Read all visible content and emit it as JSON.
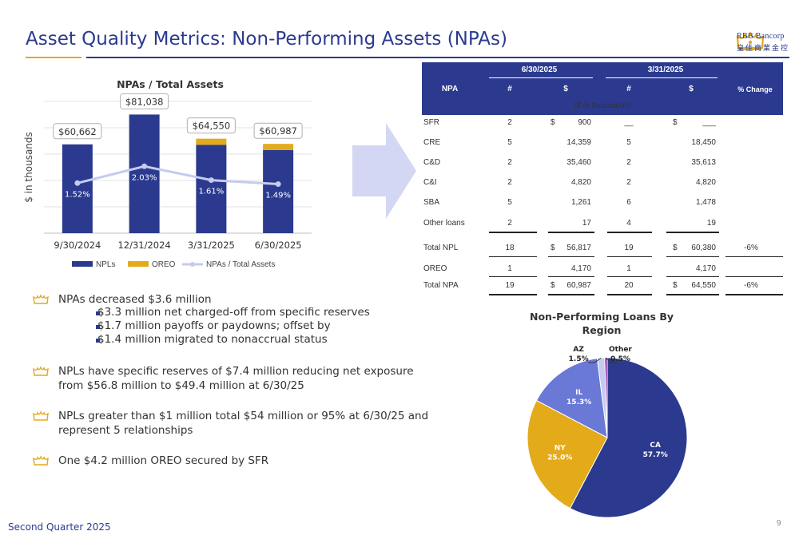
{
  "header": {
    "title": "Asset Quality Metrics:  Non-Performing Assets (NPAs)",
    "logo_en": "RBB Bancorp",
    "logo_zh": "皇佳商業金控"
  },
  "chart_data": [
    {
      "type": "bar",
      "title": "NPAs / Total Assets",
      "ylabel": "$ in thousands",
      "xlabel": "",
      "categories": [
        "9/30/2024",
        "12/31/2024",
        "3/31/2025",
        "6/30/2025"
      ],
      "series": [
        {
          "name": "NPLs",
          "values": [
            60662,
            81038,
            60380,
            56817
          ],
          "color": "#2b3a8f"
        },
        {
          "name": "OREO",
          "values": [
            0,
            0,
            4170,
            4170
          ],
          "color": "#e3aa1a"
        },
        {
          "name": "NPAs / Total Assets",
          "values": [
            1.52,
            2.03,
            1.61,
            1.49
          ],
          "color": "#c5cbee",
          "type": "line",
          "labels": [
            "1.52%",
            "2.03%",
            "1.61%",
            "1.49%"
          ]
        }
      ],
      "total_labels": [
        "$60,662",
        "$81,038",
        "$64,550",
        "$60,987"
      ],
      "ylim": [
        0,
        90000
      ],
      "ratio_ylim": [
        0,
        4
      ],
      "grid": true,
      "legend": "bottom"
    },
    {
      "type": "pie",
      "title": "Non-Performing Loans By Region",
      "slices": [
        {
          "name": "CA",
          "value": 57.7,
          "label": "57.7%",
          "color": "#2b3a8f"
        },
        {
          "name": "NY",
          "value": 25.0,
          "label": "25.0%",
          "color": "#e3aa1a"
        },
        {
          "name": "IL",
          "value": 15.3,
          "label": "15.3%",
          "color": "#6a78d6"
        },
        {
          "name": "AZ",
          "value": 1.5,
          "label": "1.5%",
          "color": "#c5cbee"
        },
        {
          "name": "Other",
          "value": 0.5,
          "label": "0.5%",
          "color": "#7b1fa2"
        }
      ]
    }
  ],
  "table": {
    "period1": "6/30/2025",
    "period2": "3/31/2025",
    "col_npa": "NPA",
    "col_count": "#",
    "col_dollar": "$",
    "col_change": "% Change",
    "units_note": "($ in thousands)",
    "rows": [
      {
        "label": "SFR",
        "c1": "2",
        "d1s": "$",
        "d1": "900",
        "c2": "__",
        "d2s": "$",
        "d2": "___",
        "chg": ""
      },
      {
        "label": "CRE",
        "c1": "5",
        "d1s": "",
        "d1": "14,359",
        "c2": "5",
        "d2s": "",
        "d2": "18,450",
        "chg": ""
      },
      {
        "label": "C&D",
        "c1": "2",
        "d1s": "",
        "d1": "35,460",
        "c2": "2",
        "d2s": "",
        "d2": "35,613",
        "chg": ""
      },
      {
        "label": "C&I",
        "c1": "2",
        "d1s": "",
        "d1": "4,820",
        "c2": "2",
        "d2s": "",
        "d2": "4,820",
        "chg": ""
      },
      {
        "label": "SBA",
        "c1": "5",
        "d1s": "",
        "d1": "1,261",
        "c2": "6",
        "d2s": "",
        "d2": "1,478",
        "chg": ""
      },
      {
        "label": "Other loans",
        "c1": "2",
        "d1s": "",
        "d1": "17",
        "c2": "4",
        "d2s": "",
        "d2": "19",
        "chg": ""
      },
      {
        "label": "Total NPL",
        "c1": "18",
        "d1s": "$",
        "d1": "56,817",
        "c2": "19",
        "d2s": "$",
        "d2": "60,380",
        "chg": "-6%"
      },
      {
        "label": "OREO",
        "c1": "1",
        "d1s": "",
        "d1": "4,170",
        "c2": "1",
        "d2s": "",
        "d2": "4,170",
        "chg": ""
      },
      {
        "label": "Total NPA",
        "c1": "19",
        "d1s": "$",
        "d1": "60,987",
        "c2": "20",
        "d2s": "$",
        "d2": "64,550",
        "chg": "-6%"
      }
    ]
  },
  "bullets": {
    "b1": "NPAs decreased $3.6 million",
    "b1_sub": [
      "$3.3 million net charged-off from specific reserves",
      "$1.7 million payoffs or paydowns; offset by",
      "$1.4 million migrated to nonaccrual status"
    ],
    "b2": "NPLs have specific reserves of $7.4 million reducing net exposure from $56.8 million to $49.4 million at 6/30/25",
    "b3": "NPLs greater than $1 million total $54 million or 95% at 6/30/25 and represent 5 relationships",
    "b4": "One $4.2 million OREO secured by SFR"
  },
  "footer": {
    "text": "Second Quarter 2025",
    "page": "9"
  },
  "colors": {
    "brand_blue": "#2b3a8f",
    "brand_gold": "#e3aa1a"
  }
}
